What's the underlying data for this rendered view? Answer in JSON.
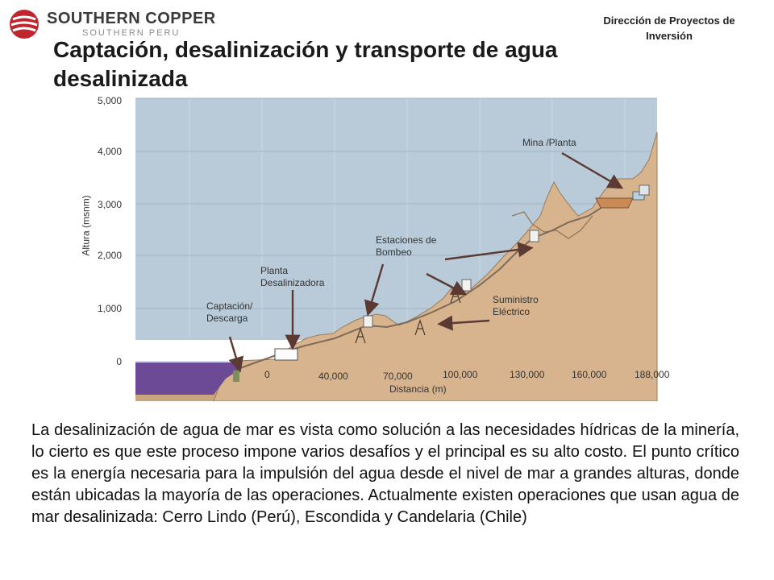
{
  "header": {
    "company_name": "SOUTHERN COPPER",
    "company_sub": "SOUTHERN PERU",
    "department": "Dirección de Proyectos de Inversión"
  },
  "title": "Captación, desalinización y transporte de agua desalinizada",
  "diagram": {
    "y_axis_label": "Altura (msnm)",
    "y_ticks": [
      "5,000",
      "4,000",
      "3,000",
      "2,000",
      "1,000",
      "0"
    ],
    "x_axis_label": "Distancia (m)",
    "x_ticks": [
      "0",
      "40,000",
      "70,000",
      "100,000",
      "130,000",
      "160,000",
      "188,000"
    ],
    "labels": {
      "mina": "Mina /Planta",
      "estaciones": "Estaciones de Bombeo",
      "planta": "Planta Desalinizadora",
      "captacion": "Captación/ Descarga",
      "suministro": "Suministro Eléctrico"
    },
    "colors": {
      "sky": "#b9cbd9",
      "terrain": "#d8b48e",
      "sea": "#6c4a96",
      "arrow": "#5a3a32"
    }
  },
  "body_text": "La desalinización de agua de mar es vista como solución a las necesidades hídricas de la minería, lo cierto es que este proceso impone varios desafíos y el principal es su alto costo.  El punto crítico es la energía necesaria para la impulsión del agua desde el nivel de mar a grandes alturas, donde están ubicadas la mayoría de las operaciones. Actualmente existen operaciones que usan agua de mar desalinizada: Cerro Lindo (Perú), Escondida y Candelaria (Chile)"
}
